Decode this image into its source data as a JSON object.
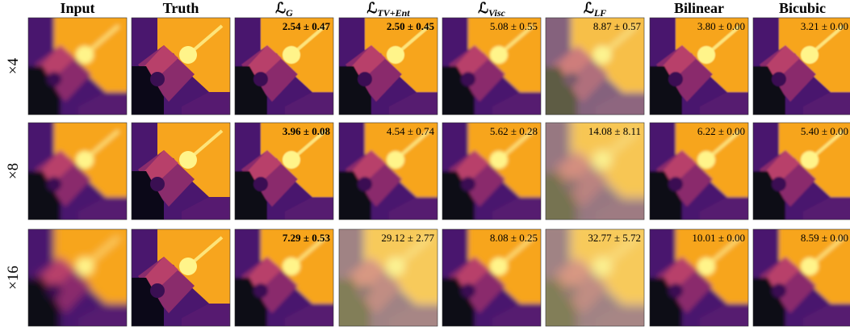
{
  "columns": [
    {
      "label": "Input"
    },
    {
      "label": "Truth"
    },
    {
      "label": "ℒ",
      "sub": "G"
    },
    {
      "label": "ℒ",
      "sub": "TV+Ent"
    },
    {
      "label": "ℒ",
      "sub": "Visc"
    },
    {
      "label": "ℒ",
      "sub": "LF"
    },
    {
      "label": "Bilinear"
    },
    {
      "label": "Bicubic"
    }
  ],
  "rows": [
    {
      "label": "×4",
      "cells": [
        null,
        null,
        {
          "text": "2.54 ± 0.47",
          "bold": true
        },
        {
          "text": "2.50 ± 0.45",
          "bold": true
        },
        {
          "text": "5.08 ± 0.55",
          "bold": false
        },
        {
          "text": "8.87 ± 0.57",
          "bold": false
        },
        {
          "text": "3.80 ± 0.00",
          "bold": false
        },
        {
          "text": "3.21 ± 0.00",
          "bold": false
        }
      ]
    },
    {
      "label": "×8",
      "cells": [
        null,
        null,
        {
          "text": "3.96 ± 0.08",
          "bold": true
        },
        {
          "text": "4.54 ± 0.74",
          "bold": false
        },
        {
          "text": "5.62 ± 0.28",
          "bold": false
        },
        {
          "text": "14.08 ± 8.11",
          "bold": false
        },
        {
          "text": "6.22 ± 0.00",
          "bold": false
        },
        {
          "text": "5.40 ± 0.00",
          "bold": false
        }
      ]
    },
    {
      "label": "×16",
      "cells": [
        null,
        null,
        {
          "text": "7.29 ± 0.53",
          "bold": true
        },
        {
          "text": "29.12 ± 2.77",
          "bold": false
        },
        {
          "text": "8.08 ± 0.25",
          "bold": false
        },
        {
          "text": "32.77 ± 5.72",
          "bold": false
        },
        {
          "text": "10.01 ± 0.00",
          "bold": false
        },
        {
          "text": "8.59 ± 0.00",
          "bold": false
        }
      ]
    }
  ]
}
